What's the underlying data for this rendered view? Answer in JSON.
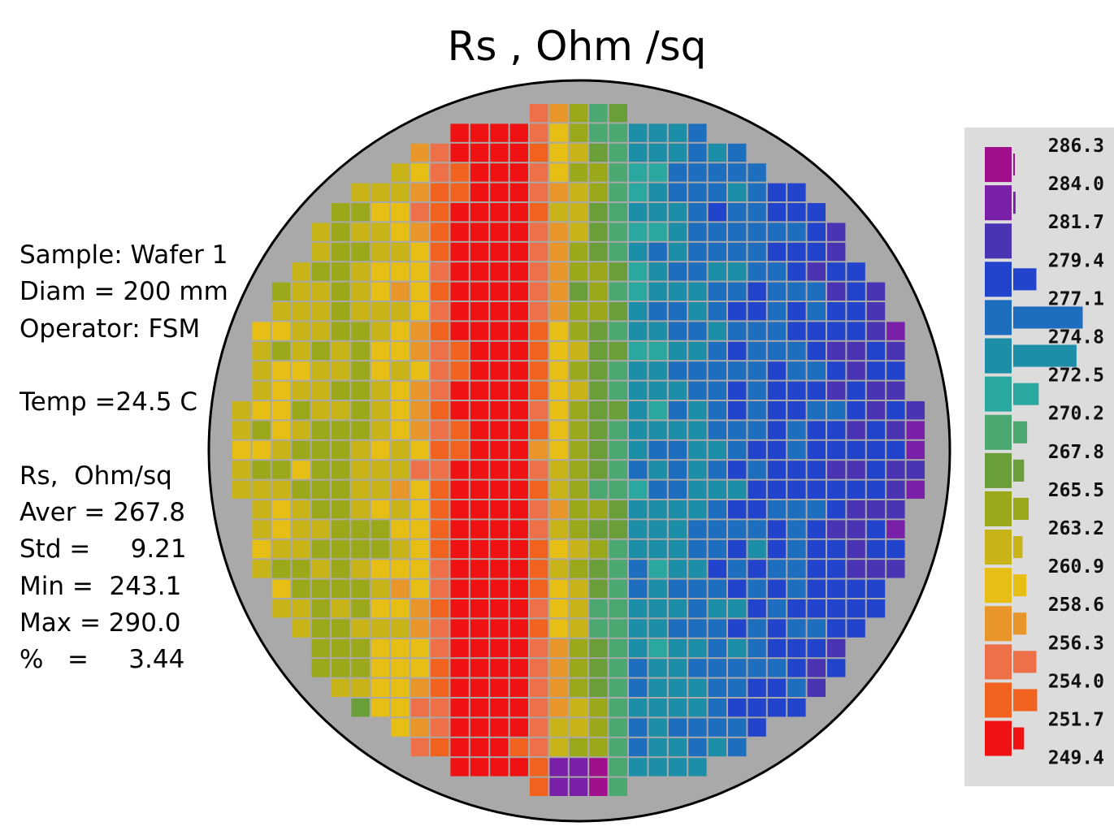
{
  "title": "Rs , Ohm /sq",
  "info": {
    "lines": [
      "Sample: Wafer 1",
      "Diam = 200 mm",
      "Operator: FSM",
      "",
      "Temp =24.5 C",
      "",
      "Rs,  Ohm/sq",
      "Aver = 267.8",
      "Std =     9.21",
      "Min =  243.1",
      "Max = 290.0",
      "%   =     3.44"
    ]
  },
  "chart_data": {
    "type": "heatmap",
    "title": "Rs , Ohm /sq",
    "legend": {
      "placement": "right",
      "ticks": [
        "286.3",
        "284.0",
        "281.7",
        "279.4",
        "277.1",
        "274.8",
        "272.5",
        "270.2",
        "267.8",
        "265.5",
        "263.2",
        "260.9",
        "258.6",
        "256.3",
        "254.0",
        "251.7",
        "249.4"
      ],
      "colors": [
        "#a0108c",
        "#7a1fa8",
        "#4a34b4",
        "#2244cc",
        "#1e6ec0",
        "#1c8ea8",
        "#2aa8a0",
        "#4aa870",
        "#6a9e38",
        "#9aa81a",
        "#c8b418",
        "#e6be14",
        "#e8962a",
        "#ee7048",
        "#f0621e",
        "#f01212"
      ],
      "histogram": [
        0.02,
        0.03,
        0.0,
        0.3,
        0.9,
        0.82,
        0.33,
        0.18,
        0.14,
        0.2,
        0.12,
        0.17,
        0.17,
        0.3,
        0.31,
        0.14
      ]
    },
    "wafer": {
      "diameter_mm": 200
    }
  }
}
